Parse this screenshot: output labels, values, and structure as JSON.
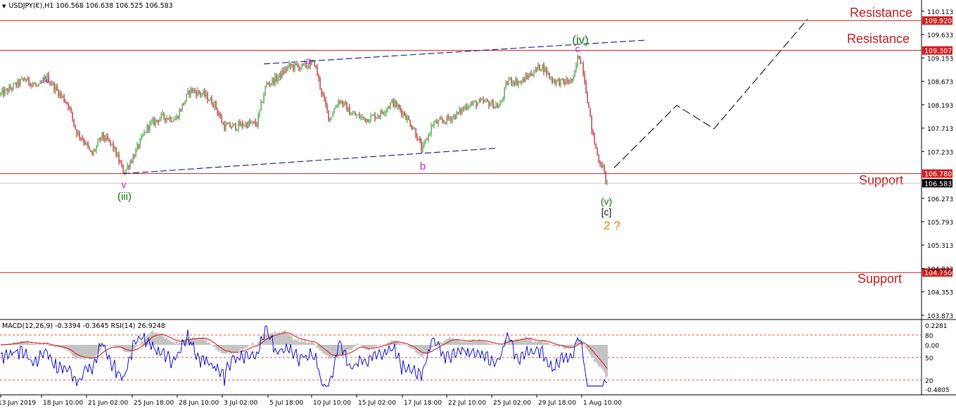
{
  "header": {
    "symbol_line": "USDJPY(€),H1  106.568 106.638 106.525 106.583"
  },
  "indicator_header": {
    "line": "MACD(12,26,9) -0.3394 -0.3645  RSI(14) 26.9248"
  },
  "colors": {
    "bull_candle": "#2e9e2e",
    "bear_candle": "#b01515",
    "level_line": "#d32020",
    "trend_line": "#1c1c8c",
    "forecast_line": "#000000",
    "wave_magenta": "#d01fd0",
    "wave_green": "#1a7a1a",
    "wave_orange": "#e08a12",
    "level_text": "#c81e1e",
    "macd_hist": "#c4c4c4",
    "rsi_line": "#0000cc",
    "macd_signal": "#e01010"
  },
  "chart_data": [
    {
      "type": "line",
      "title": "USDJPY(€),H1",
      "ohlc_last": {
        "open": 106.568,
        "high": 106.638,
        "low": 106.525,
        "close": 106.583
      },
      "x_tick_labels": [
        "13 Jun 2019",
        "18 Jun 10:00",
        "21 Jun 02:00",
        "25 Jun 18:00",
        "28 Jun 10:00",
        "3 Jul 02:00",
        "5 Jul 18:00",
        "10 Jul 10:00",
        "15 Jul 02:00",
        "17 Jul 18:00",
        "22 Jul 10:00",
        "25 Jul 02:00",
        "29 Jul 18:00",
        "1 Aug 10:00"
      ],
      "y_tick_labels": [
        "110.113",
        "109.633",
        "109.153",
        "108.673",
        "108.193",
        "107.713",
        "107.233",
        "106.273",
        "105.793",
        "105.313",
        "104.833",
        "104.353",
        "103.873"
      ],
      "ylim": [
        103.8,
        110.27
      ],
      "price_levels": [
        {
          "value": 109.92,
          "label": "109.920",
          "text": "Resistance"
        },
        {
          "value": 109.307,
          "label": "109.307",
          "text": "Resistance"
        },
        {
          "value": 106.78,
          "label": "106.780",
          "text": "Support"
        },
        {
          "value": 104.75,
          "label": "104.750",
          "text": "Support"
        }
      ],
      "current_price": {
        "value": 106.583,
        "label": "106.583"
      },
      "price_path": [
        [
          0,
          108.4
        ],
        [
          12,
          108.5
        ],
        [
          35,
          108.72
        ],
        [
          55,
          108.55
        ],
        [
          66,
          108.77
        ],
        [
          80,
          108.5
        ],
        [
          97,
          108.2
        ],
        [
          108,
          107.65
        ],
        [
          120,
          107.45
        ],
        [
          130,
          107.15
        ],
        [
          145,
          107.55
        ],
        [
          160,
          107.35
        ],
        [
          176,
          106.8
        ],
        [
          190,
          107.15
        ],
        [
          210,
          107.75
        ],
        [
          230,
          107.95
        ],
        [
          250,
          107.9
        ],
        [
          270,
          108.5
        ],
        [
          290,
          108.4
        ],
        [
          305,
          108.2
        ],
        [
          318,
          107.75
        ],
        [
          335,
          107.75
        ],
        [
          350,
          107.8
        ],
        [
          365,
          107.8
        ],
        [
          378,
          108.6
        ],
        [
          395,
          108.75
        ],
        [
          410,
          108.98
        ],
        [
          430,
          108.97
        ],
        [
          447,
          109.05
        ],
        [
          458,
          108.4
        ],
        [
          468,
          107.9
        ],
        [
          482,
          108.3
        ],
        [
          500,
          108.0
        ],
        [
          520,
          107.9
        ],
        [
          540,
          108.0
        ],
        [
          558,
          108.25
        ],
        [
          575,
          108.0
        ],
        [
          590,
          107.65
        ],
        [
          600,
          107.25
        ],
        [
          615,
          107.8
        ],
        [
          630,
          107.85
        ],
        [
          650,
          108.0
        ],
        [
          665,
          108.2
        ],
        [
          690,
          108.25
        ],
        [
          710,
          108.15
        ],
        [
          722,
          108.7
        ],
        [
          740,
          108.65
        ],
        [
          752,
          108.8
        ],
        [
          770,
          109.0
        ],
        [
          785,
          108.7
        ],
        [
          800,
          108.65
        ],
        [
          815,
          108.7
        ],
        [
          822,
          109.22
        ],
        [
          828,
          109.0
        ],
        [
          836,
          108.2
        ],
        [
          842,
          107.6
        ],
        [
          850,
          107.1
        ],
        [
          857,
          106.9
        ],
        [
          863,
          106.55
        ]
      ],
      "wave_labels": [
        {
          "text": "iv",
          "color": "magenta"
        },
        {
          "text": "v",
          "color": "magenta"
        },
        {
          "text": "(iii)",
          "color": "green"
        },
        {
          "text": "a",
          "color": "magenta"
        },
        {
          "text": "b",
          "color": "magenta"
        },
        {
          "text": "c",
          "color": "magenta"
        },
        {
          "text": "(iv)",
          "color": "green"
        },
        {
          "text": "(v)",
          "color": "green"
        },
        {
          "text": "[c]",
          "color": "dark"
        },
        {
          "text": "2 ?",
          "color": "orange"
        }
      ],
      "trend_lines": [
        {
          "from": [
            176,
            106.78
          ],
          "to": [
            705,
            107.3
          ]
        },
        {
          "from": [
            375,
            109.03
          ],
          "to": [
            920,
            109.52
          ]
        }
      ],
      "forecast_path": [
        [
          873,
          106.9
        ],
        [
          962,
          108.18
        ],
        [
          1015,
          107.7
        ],
        [
          1148,
          109.95
        ]
      ]
    },
    {
      "type": "line",
      "title": "MACD(12,26,9) RSI(14)",
      "macd": -0.3394,
      "signal": -0.3645,
      "rsi": 26.9248,
      "left_tick_labels": [
        "0.2281",
        "0.00",
        "-0.4805"
      ],
      "rsi_tick_labels": [
        "80",
        "50",
        "20"
      ],
      "rsi_levels": [
        80,
        50,
        20
      ]
    }
  ]
}
